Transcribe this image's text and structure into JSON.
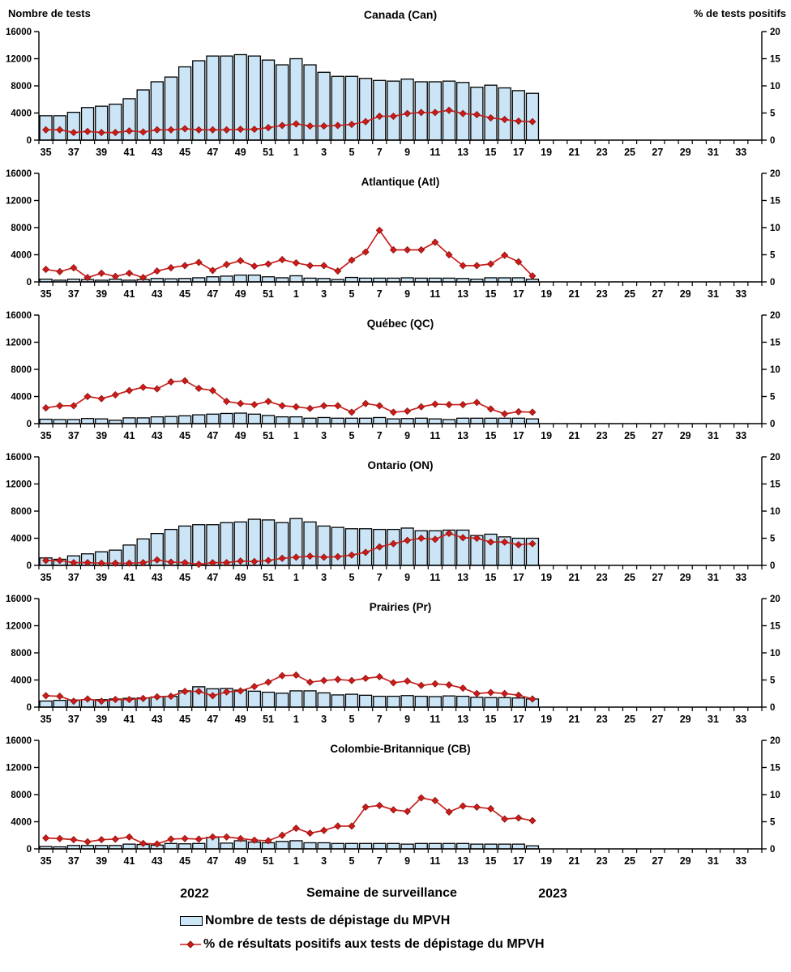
{
  "header": {
    "left_axis_title": "Nombre de tests",
    "right_axis_title": "% de tests positifs"
  },
  "footer": {
    "year_left": "2022",
    "axis_title": "Semaine de surveillance",
    "year_right": "2023",
    "legend": [
      {
        "type": "bar",
        "label": "Nombre de tests de dépistage du MPVH"
      },
      {
        "type": "line",
        "label": "% de résultats positifs aux tests de dépistage du MPVH"
      }
    ]
  },
  "colors": {
    "bar_fill": "#CBE5F6",
    "bar_stroke": "#000000",
    "line": "#C8201E",
    "marker_fill": "#CC1B18",
    "marker_stroke": "#8E1310"
  },
  "axes": {
    "left_ticks": [
      0,
      4000,
      8000,
      12000,
      16000
    ],
    "right_ticks": [
      0,
      5,
      10,
      15,
      20
    ],
    "left_max": 16000,
    "right_max": 20,
    "x_slot_count": 52,
    "x_labels": [
      "35",
      "37",
      "39",
      "41",
      "43",
      "45",
      "47",
      "49",
      "51",
      "1",
      "3",
      "5",
      "7",
      "9",
      "11",
      "13",
      "15",
      "17",
      "19",
      "21",
      "23",
      "25",
      "27",
      "29",
      "31",
      "33"
    ],
    "data_weeks": [
      35,
      36,
      37,
      38,
      39,
      40,
      41,
      42,
      43,
      44,
      45,
      46,
      47,
      48,
      49,
      50,
      51,
      52,
      1,
      2,
      3,
      4,
      5,
      6,
      7,
      8,
      9,
      10,
      11,
      12,
      13,
      14,
      15,
      16,
      17,
      18
    ]
  },
  "chart_data": [
    {
      "type": "bar+line",
      "title": "Canada (Can)",
      "series": [
        {
          "name": "Nombre de tests",
          "axis": "left",
          "values": [
            3600,
            3600,
            4100,
            4800,
            5000,
            5300,
            6100,
            7400,
            8600,
            9300,
            10800,
            11700,
            12400,
            12400,
            12600,
            12400,
            11800,
            11100,
            12000,
            11100,
            10000,
            9400,
            9400,
            9100,
            8800,
            8700,
            9000,
            8600,
            8600,
            8700,
            8500,
            7800,
            8100,
            7700,
            7300,
            6900
          ]
        },
        {
          "name": "% de tests positifs",
          "axis": "right",
          "values": [
            1.9,
            1.9,
            1.4,
            1.6,
            1.4,
            1.4,
            1.7,
            1.5,
            1.9,
            1.9,
            2.1,
            1.9,
            1.9,
            1.9,
            2.0,
            2.0,
            2.3,
            2.7,
            3.0,
            2.6,
            2.6,
            2.7,
            2.9,
            3.4,
            4.4,
            4.4,
            4.9,
            5.1,
            5.1,
            5.5,
            4.9,
            4.7,
            4.1,
            3.8,
            3.5,
            3.4
          ]
        }
      ]
    },
    {
      "type": "bar+line",
      "title": "Atlantique (Atl)",
      "series": [
        {
          "name": "Nombre de tests",
          "axis": "left",
          "values": [
            400,
            250,
            400,
            350,
            250,
            400,
            250,
            350,
            500,
            450,
            500,
            600,
            750,
            850,
            1000,
            1000,
            750,
            600,
            900,
            550,
            500,
            350,
            650,
            550,
            550,
            550,
            600,
            550,
            550,
            550,
            500,
            400,
            600,
            600,
            600,
            400
          ]
        },
        {
          "name": "% de tests positifs",
          "axis": "right",
          "values": [
            2.3,
            1.9,
            2.6,
            0.8,
            1.6,
            1.0,
            1.6,
            0.8,
            2.0,
            2.6,
            3.0,
            3.6,
            2.1,
            3.2,
            3.9,
            2.9,
            3.3,
            4.1,
            3.5,
            3.0,
            3.0,
            2.0,
            4.0,
            5.5,
            9.5,
            5.9,
            5.9,
            5.9,
            7.3,
            5.0,
            3.0,
            3.0,
            3.3,
            4.9,
            3.7,
            1.1
          ]
        }
      ]
    },
    {
      "type": "bar+line",
      "title": "Québec (QC)",
      "series": [
        {
          "name": "Nombre de tests",
          "axis": "left",
          "values": [
            650,
            600,
            600,
            750,
            700,
            500,
            850,
            850,
            1000,
            1050,
            1150,
            1300,
            1400,
            1500,
            1550,
            1400,
            1200,
            1000,
            1000,
            800,
            900,
            800,
            800,
            800,
            900,
            700,
            750,
            800,
            700,
            600,
            800,
            800,
            800,
            800,
            800,
            700
          ]
        },
        {
          "name": "% de tests positifs",
          "axis": "right",
          "values": [
            2.9,
            3.3,
            3.3,
            5.0,
            4.6,
            5.3,
            6.1,
            6.7,
            6.4,
            7.7,
            7.9,
            6.5,
            6.1,
            4.1,
            3.7,
            3.5,
            4.1,
            3.3,
            3.1,
            2.8,
            3.3,
            3.3,
            2.1,
            3.7,
            3.3,
            2.1,
            2.3,
            3.1,
            3.6,
            3.5,
            3.5,
            3.9,
            2.7,
            1.8,
            2.2,
            2.1
          ]
        }
      ]
    },
    {
      "type": "bar+line",
      "title": "Ontario (ON)",
      "series": [
        {
          "name": "Nombre de tests",
          "axis": "left",
          "values": [
            1100,
            900,
            1400,
            1700,
            2000,
            2250,
            3000,
            3900,
            4700,
            5300,
            5800,
            6000,
            6000,
            6300,
            6400,
            6800,
            6700,
            6300,
            6900,
            6400,
            5800,
            5600,
            5400,
            5400,
            5300,
            5300,
            5500,
            5100,
            5100,
            5200,
            5200,
            4400,
            4600,
            4200,
            4000,
            4000
          ]
        },
        {
          "name": "% de tests positifs",
          "axis": "right",
          "values": [
            0.9,
            0.9,
            0.5,
            0.5,
            0.4,
            0.4,
            0.4,
            0.5,
            1.0,
            0.6,
            0.5,
            0.2,
            0.5,
            0.5,
            0.8,
            0.7,
            0.9,
            1.3,
            1.5,
            1.7,
            1.5,
            1.6,
            1.9,
            2.4,
            3.4,
            4.0,
            4.6,
            5.0,
            4.8,
            5.9,
            5.1,
            5.0,
            4.3,
            4.3,
            3.8,
            4.0
          ]
        }
      ]
    },
    {
      "type": "bar+line",
      "title": "Prairies (Pr)",
      "series": [
        {
          "name": "Nombre de tests",
          "axis": "left",
          "values": [
            900,
            1000,
            1050,
            1100,
            1100,
            1200,
            1300,
            1350,
            1500,
            1600,
            2400,
            3000,
            2700,
            2750,
            2500,
            2350,
            2200,
            2050,
            2400,
            2400,
            2100,
            1800,
            1900,
            1750,
            1600,
            1600,
            1700,
            1600,
            1550,
            1650,
            1600,
            1450,
            1400,
            1400,
            1350,
            1200
          ]
        },
        {
          "name": "% de tests positifs",
          "axis": "right",
          "values": [
            2.1,
            2.0,
            1.1,
            1.5,
            1.1,
            1.4,
            1.4,
            1.6,
            1.9,
            2.0,
            2.9,
            2.9,
            2.1,
            2.8,
            3.0,
            3.8,
            4.6,
            5.8,
            5.9,
            4.6,
            4.9,
            5.1,
            4.9,
            5.3,
            5.6,
            4.5,
            4.8,
            4.0,
            4.3,
            4.1,
            3.5,
            2.5,
            2.7,
            2.5,
            2.2,
            1.5
          ]
        }
      ]
    },
    {
      "type": "bar+line",
      "title": "Colombie-Britannique (CB)",
      "series": [
        {
          "name": "Nombre de tests",
          "axis": "left",
          "values": [
            350,
            300,
            500,
            500,
            500,
            500,
            700,
            650,
            550,
            800,
            750,
            800,
            1700,
            850,
            1200,
            1000,
            900,
            1100,
            1200,
            900,
            900,
            800,
            800,
            800,
            800,
            800,
            700,
            800,
            800,
            800,
            800,
            700,
            700,
            700,
            700,
            450
          ]
        },
        {
          "name": "% de tests positifs",
          "axis": "right",
          "values": [
            2.0,
            1.9,
            1.7,
            1.3,
            1.7,
            1.8,
            2.2,
            1.0,
            0.9,
            1.8,
            1.9,
            1.8,
            2.2,
            2.2,
            1.9,
            1.6,
            1.5,
            2.5,
            3.8,
            2.9,
            3.4,
            4.2,
            4.2,
            7.7,
            8.0,
            7.2,
            6.9,
            9.4,
            8.9,
            6.8,
            7.9,
            7.7,
            7.4,
            5.5,
            5.7,
            5.2
          ]
        }
      ]
    }
  ]
}
